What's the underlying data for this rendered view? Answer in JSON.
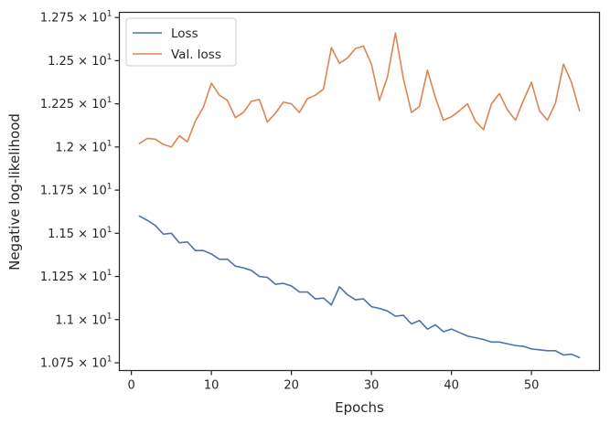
{
  "chart_data": {
    "type": "line",
    "title": "",
    "xlabel": "Epochs",
    "ylabel": "Negative log-likelihood",
    "xlim": [
      -1.5,
      58.5
    ],
    "ylim": [
      10.705,
      12.78
    ],
    "x_ticks": [
      0,
      10,
      20,
      30,
      40,
      50
    ],
    "x_tick_labels": [
      "0",
      "10",
      "20",
      "30",
      "40",
      "50"
    ],
    "y_ticks": [
      10.75,
      11.0,
      11.25,
      11.5,
      11.75,
      12.0,
      12.25,
      12.5,
      12.75
    ],
    "y_tick_mantissas": [
      "1.075",
      "1.1",
      "1.125",
      "1.15",
      "1.175",
      "1.2",
      "1.225",
      "1.25",
      "1.275"
    ],
    "y_tick_base": "10",
    "y_tick_exponent": "1",
    "grid": false,
    "legend_position": "top-left",
    "x": [
      1,
      2,
      3,
      4,
      5,
      6,
      7,
      8,
      9,
      10,
      11,
      12,
      13,
      14,
      15,
      16,
      17,
      18,
      19,
      20,
      21,
      22,
      23,
      24,
      25,
      26,
      27,
      28,
      29,
      30,
      31,
      32,
      33,
      34,
      35,
      36,
      37,
      38,
      39,
      40,
      41,
      42,
      43,
      44,
      45,
      46,
      47,
      48,
      49,
      50,
      51,
      52,
      53,
      54,
      55,
      56
    ],
    "series": [
      {
        "name": "Loss",
        "color": "#4c72b0",
        "values": [
          11.6,
          11.575,
          11.545,
          11.495,
          11.5,
          11.445,
          11.45,
          11.4,
          11.4,
          11.38,
          11.35,
          11.35,
          11.31,
          11.3,
          11.285,
          11.25,
          11.245,
          11.205,
          11.21,
          11.195,
          11.16,
          11.16,
          11.12,
          11.125,
          11.085,
          11.19,
          11.145,
          11.115,
          11.12,
          11.075,
          11.065,
          11.05,
          11.02,
          11.025,
          10.975,
          10.995,
          10.945,
          10.97,
          10.93,
          10.945,
          10.925,
          10.905,
          10.895,
          10.885,
          10.87,
          10.87,
          10.86,
          10.85,
          10.845,
          10.83,
          10.825,
          10.82,
          10.82,
          10.795,
          10.8,
          10.78
        ]
      },
      {
        "name": "Val. loss",
        "color": "#dd8452",
        "values": [
          12.02,
          12.05,
          12.045,
          12.015,
          12.0,
          12.065,
          12.03,
          12.15,
          12.23,
          12.37,
          12.3,
          12.27,
          12.17,
          12.2,
          12.265,
          12.275,
          12.145,
          12.195,
          12.26,
          12.25,
          12.2,
          12.28,
          12.3,
          12.335,
          12.575,
          12.485,
          12.515,
          12.57,
          12.585,
          12.48,
          12.27,
          12.405,
          12.66,
          12.395,
          12.2,
          12.235,
          12.445,
          12.285,
          12.155,
          12.175,
          12.21,
          12.25,
          12.15,
          12.1,
          12.25,
          12.31,
          12.215,
          12.155,
          12.27,
          12.375,
          12.21,
          12.155,
          12.255,
          12.48,
          12.375,
          12.21
        ]
      }
    ]
  }
}
